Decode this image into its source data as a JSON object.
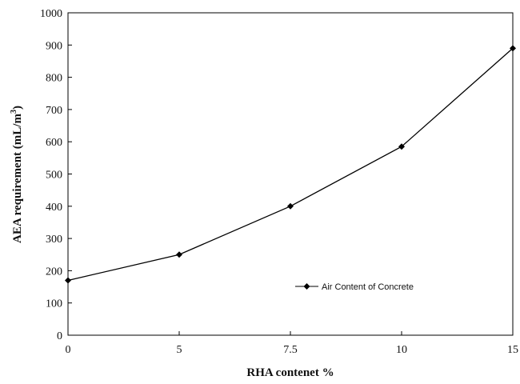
{
  "chart_data": {
    "type": "line",
    "categories": [
      "0",
      "5",
      "7.5",
      "10",
      "15"
    ],
    "series": [
      {
        "name": "Air Content of Concrete",
        "values": [
          170,
          250,
          400,
          585,
          890
        ],
        "color": "#000000",
        "marker": "diamond"
      }
    ],
    "xlabel": "RHA contenet %",
    "ylabel": "AEA requirement (mL/m",
    "ylabel_superscript": "3",
    "ylabel_suffix": ")",
    "ylim": [
      0,
      1000
    ],
    "yticks": [
      0,
      100,
      200,
      300,
      400,
      500,
      600,
      700,
      800,
      900,
      1000
    ],
    "grid": false,
    "legend_position": "lower-right"
  }
}
